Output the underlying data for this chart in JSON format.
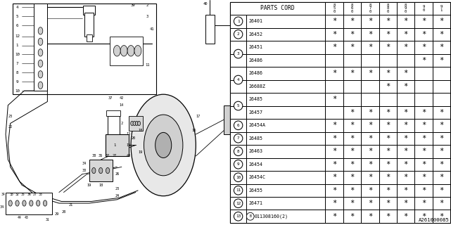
{
  "diagram_label": "A261000085",
  "rows": [
    {
      "num": "1",
      "circle": true,
      "code": "26401",
      "marks": [
        1,
        1,
        1,
        1,
        1,
        1,
        1
      ]
    },
    {
      "num": "2",
      "circle": true,
      "code": "26452",
      "marks": [
        1,
        1,
        1,
        1,
        1,
        1,
        1
      ]
    },
    {
      "num": "3a",
      "circle": true,
      "code": "26451",
      "marks": [
        1,
        1,
        1,
        1,
        1,
        1,
        1
      ]
    },
    {
      "num": "3b",
      "circle": false,
      "code": "26486",
      "marks": [
        0,
        0,
        0,
        0,
        0,
        1,
        1
      ]
    },
    {
      "num": "4a",
      "circle": true,
      "code": "26486",
      "marks": [
        1,
        1,
        1,
        1,
        1,
        0,
        0
      ]
    },
    {
      "num": "4b",
      "circle": false,
      "code": "26688Z",
      "marks": [
        0,
        0,
        0,
        1,
        1,
        0,
        0
      ]
    },
    {
      "num": "5a",
      "circle": true,
      "code": "26485",
      "marks": [
        1,
        0,
        0,
        0,
        0,
        0,
        0
      ]
    },
    {
      "num": "5b",
      "circle": false,
      "code": "26457",
      "marks": [
        0,
        1,
        1,
        1,
        1,
        1,
        1
      ]
    },
    {
      "num": "6",
      "circle": true,
      "code": "26454A",
      "marks": [
        1,
        1,
        1,
        1,
        1,
        1,
        1
      ]
    },
    {
      "num": "7",
      "circle": true,
      "code": "26485",
      "marks": [
        1,
        1,
        1,
        1,
        1,
        1,
        1
      ]
    },
    {
      "num": "8",
      "circle": true,
      "code": "26463",
      "marks": [
        1,
        1,
        1,
        1,
        1,
        1,
        1
      ]
    },
    {
      "num": "9",
      "circle": true,
      "code": "26454",
      "marks": [
        1,
        1,
        1,
        1,
        1,
        1,
        1
      ]
    },
    {
      "num": "10",
      "circle": true,
      "code": "26454C",
      "marks": [
        1,
        1,
        1,
        1,
        1,
        1,
        1
      ]
    },
    {
      "num": "11",
      "circle": true,
      "code": "26455",
      "marks": [
        1,
        1,
        1,
        1,
        1,
        1,
        1
      ]
    },
    {
      "num": "12",
      "circle": true,
      "code": "26471",
      "marks": [
        1,
        1,
        1,
        1,
        1,
        1,
        1
      ]
    },
    {
      "num": "13",
      "circle": true,
      "code": "B011308160(2)",
      "marks": [
        1,
        1,
        1,
        1,
        1,
        1,
        1
      ]
    }
  ],
  "col_headers": [
    "8\n5\n0",
    "8\n6\n0",
    "8\n7\n0",
    "8\n8\n0",
    "8\n9\n0",
    "9\n0",
    "9\n1"
  ],
  "bg_color": "#ffffff"
}
